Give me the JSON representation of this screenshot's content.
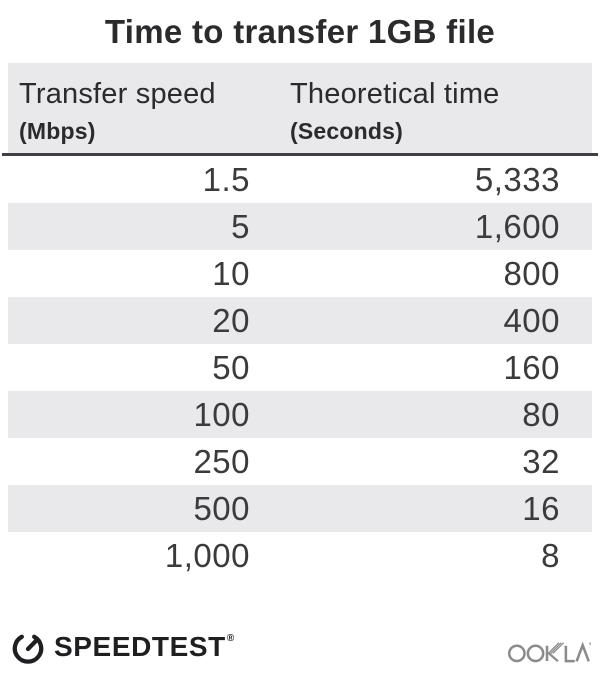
{
  "title": "Time to transfer 1GB file",
  "table": {
    "col1_header": "Transfer speed",
    "col1_unit": "(Mbps)",
    "col2_header": "Theoretical time",
    "col2_unit": "(Seconds)"
  },
  "chart_data": {
    "type": "table",
    "title": "Time to transfer 1GB file",
    "columns": [
      {
        "label": "Transfer speed",
        "unit": "(Mbps)"
      },
      {
        "label": "Theoretical time",
        "unit": "(Seconds)"
      }
    ],
    "rows": [
      {
        "speed": "1.5",
        "time": "5,333"
      },
      {
        "speed": "5",
        "time": "1,600"
      },
      {
        "speed": "10",
        "time": "800"
      },
      {
        "speed": "20",
        "time": "400"
      },
      {
        "speed": "50",
        "time": "160"
      },
      {
        "speed": "100",
        "time": "80"
      },
      {
        "speed": "250",
        "time": "32"
      },
      {
        "speed": "500",
        "time": "16"
      },
      {
        "speed": "1,000",
        "time": "8"
      }
    ]
  },
  "footer": {
    "speedtest_label": "SPEEDTEST",
    "registered_mark": "®",
    "ookla_label": "OOKLA"
  },
  "colors": {
    "text_dark": "#2b2a2d",
    "number_text": "#3b3a3d",
    "header_bg": "#e9e8ea",
    "row_alt_bg": "#e9e8ea",
    "divider": "#403f43",
    "logo_dark": "#1f1e21",
    "ookla_gray": "#8b8a8d"
  }
}
